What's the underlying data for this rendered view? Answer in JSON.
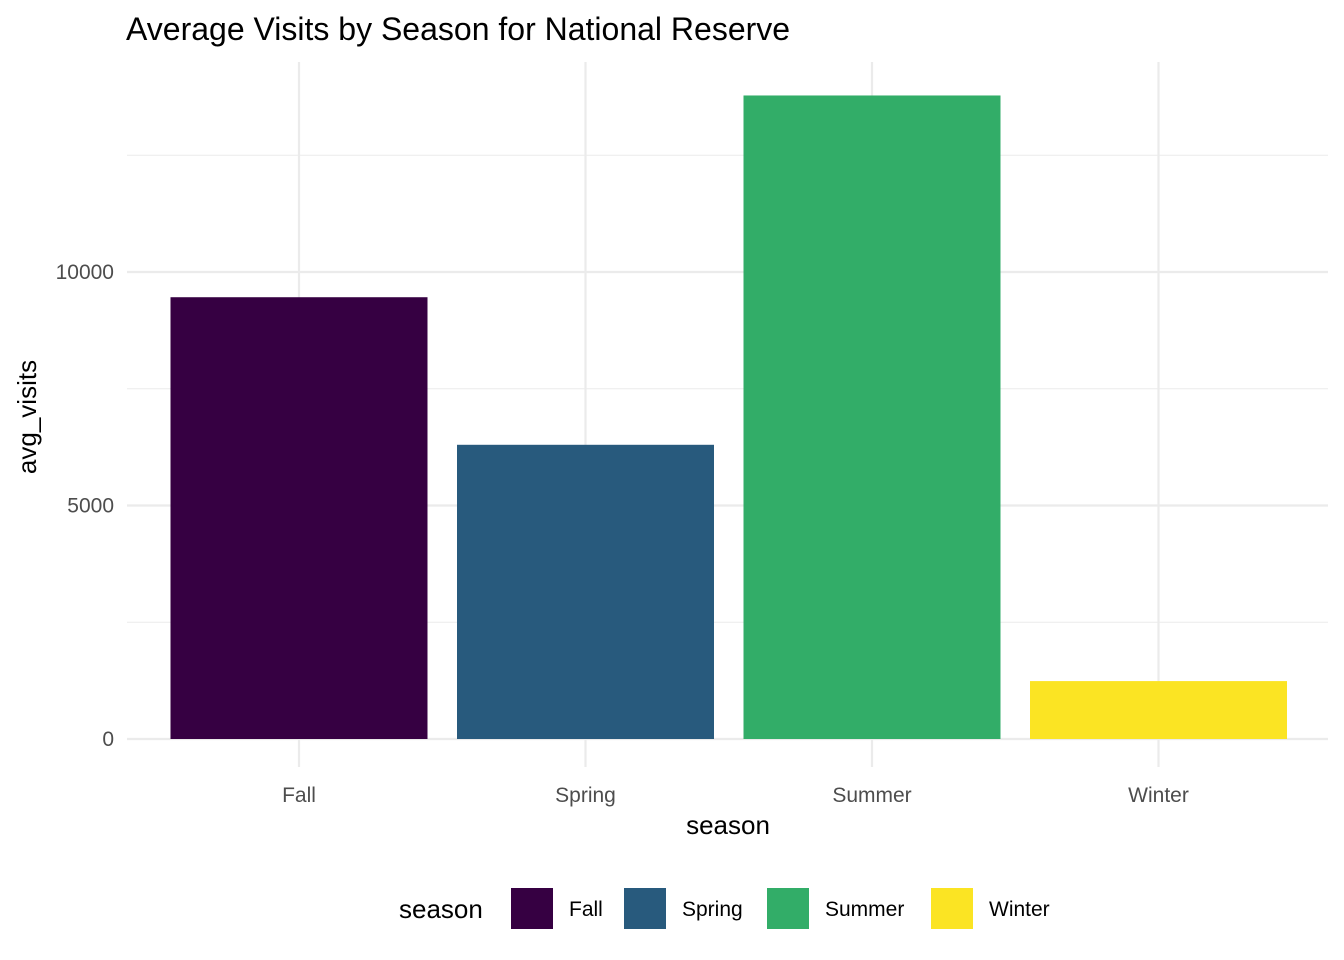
{
  "chart_data": {
    "type": "bar",
    "title": "Average Visits by Season for National Reserve",
    "xlabel": "season",
    "ylabel": "avg_visits",
    "categories": [
      "Fall",
      "Spring",
      "Summer",
      "Winter"
    ],
    "values": [
      9460,
      6300,
      13780,
      1240
    ],
    "colors": [
      "#360042",
      "#285A7D",
      "#32AD68",
      "#FBE423"
    ],
    "ylim": [
      0,
      14000
    ],
    "y_ticks": [
      0,
      5000,
      10000
    ],
    "y_tick_labels": [
      "0",
      "5000",
      "10000"
    ],
    "y_minor_ticks": [
      2500,
      7500,
      12500
    ],
    "grid": true,
    "legend": {
      "title": "season",
      "position": "bottom",
      "entries": [
        "Fall",
        "Spring",
        "Summer",
        "Winter"
      ]
    }
  }
}
